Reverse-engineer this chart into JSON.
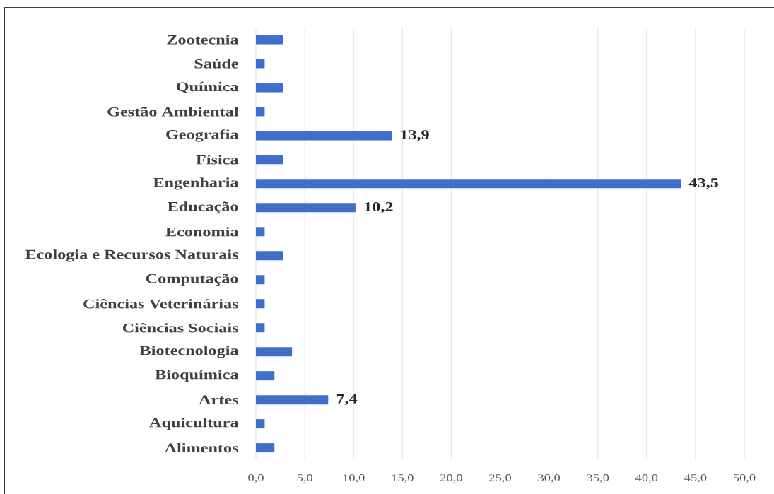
{
  "chart_data": {
    "type": "bar",
    "orientation": "horizontal",
    "categories": [
      "Zootecnia",
      "Saúde",
      "Química",
      "Gestão Ambiental",
      "Geografia",
      "Física",
      "Engenharia",
      "Educação",
      "Economia",
      "Ecologia e Recursos Naturais",
      "Computação",
      "Ciências Veterinárias",
      "Ciências Sociais",
      "Biotecnologia",
      "Bioquímica",
      "Artes",
      "Aquicultura",
      "Alimentos"
    ],
    "values": [
      2.8,
      0.9,
      2.8,
      0.9,
      13.9,
      2.8,
      43.5,
      10.2,
      0.9,
      2.8,
      0.9,
      0.9,
      0.9,
      3.7,
      1.9,
      7.4,
      0.9,
      1.9
    ],
    "value_labels": [
      null,
      null,
      null,
      null,
      "13,9",
      null,
      "43,5",
      "10,2",
      null,
      null,
      null,
      null,
      null,
      null,
      null,
      "7,4",
      null,
      null
    ],
    "color": "#3f6fca",
    "xlim": [
      0,
      50
    ],
    "xticks": [
      {
        "value": 0,
        "label": "0,0"
      },
      {
        "value": 5,
        "label": "5,0"
      },
      {
        "value": 10,
        "label": "10,0"
      },
      {
        "value": 15,
        "label": "15,0"
      },
      {
        "value": 20,
        "label": "20,0"
      },
      {
        "value": 25,
        "label": "25,0"
      },
      {
        "value": 30,
        "label": "30,0"
      },
      {
        "value": 35,
        "label": "35,0"
      },
      {
        "value": 40,
        "label": "40,0"
      },
      {
        "value": 45,
        "label": "45,0"
      },
      {
        "value": 50,
        "label": "50,0"
      }
    ],
    "grid": "x"
  }
}
